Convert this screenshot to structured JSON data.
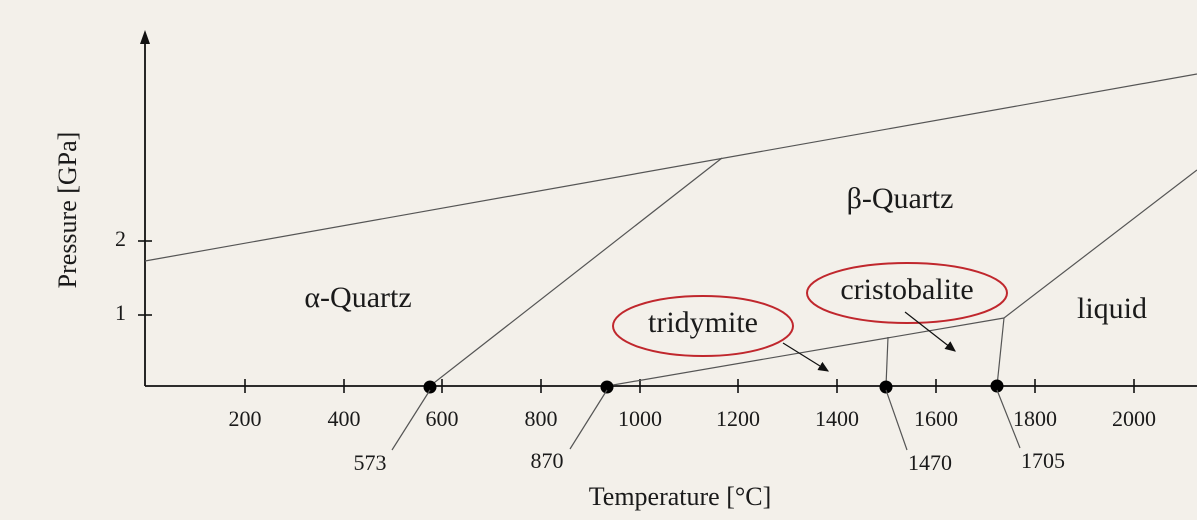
{
  "x_axis": {
    "title": "Temperature [°C]",
    "ticks": [
      200,
      400,
      600,
      800,
      1000,
      1200,
      1400,
      1600,
      1800,
      2000
    ]
  },
  "y_axis": {
    "title": "Pressure [GPa]",
    "ticks": [
      2,
      1
    ]
  },
  "points": [
    573,
    870,
    1470,
    1705
  ],
  "regions": [
    "α-Quartz",
    "β-Quartz",
    "liquid",
    "tridymite",
    "cristobalite"
  ]
}
